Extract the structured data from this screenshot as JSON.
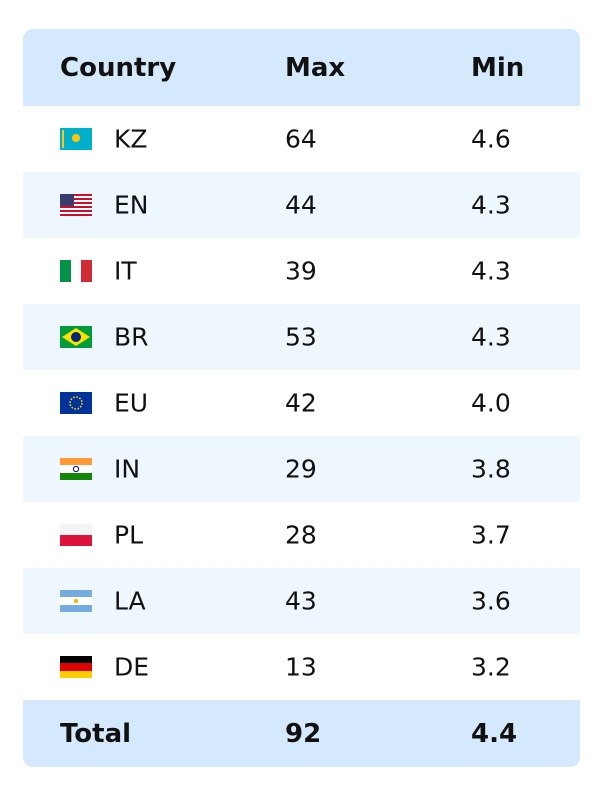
{
  "table": {
    "header": [
      "Country",
      "Max",
      "Min"
    ],
    "rows": [
      [
        "KZ",
        "64",
        "4.6"
      ],
      [
        "EN",
        "44",
        "4.3"
      ],
      [
        "IT",
        "39",
        "4.3"
      ],
      [
        "BR",
        "53",
        "4.3"
      ],
      [
        "EU",
        "42",
        "4.0"
      ],
      [
        "IN",
        "29",
        "3.8"
      ],
      [
        "PL",
        "28",
        "3.7"
      ],
      [
        "LA",
        "43",
        "3.6"
      ],
      [
        "DE",
        "13",
        "3.2"
      ]
    ],
    "footer": [
      "Total",
      "92",
      "4.4"
    ]
  }
}
